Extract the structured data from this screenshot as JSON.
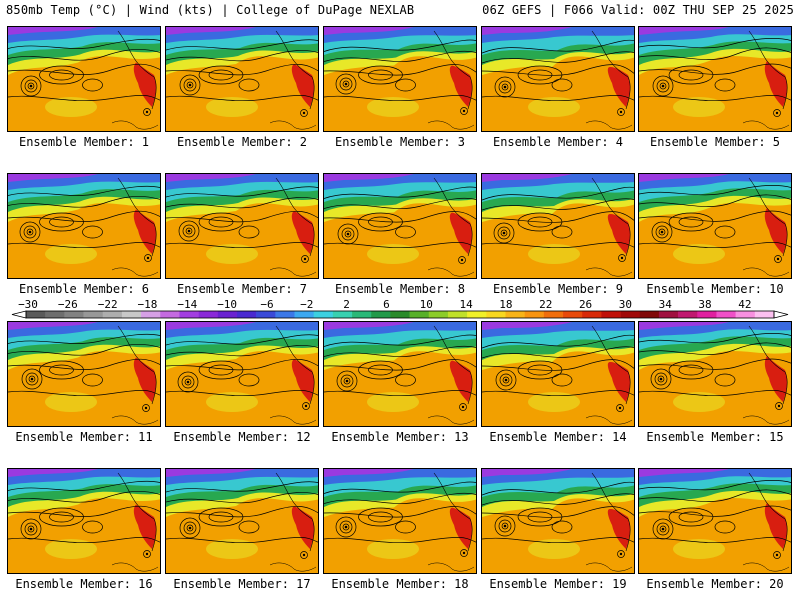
{
  "header": {
    "left_title": "850mb Temp (°C) | Wind (kts) | College of DuPage NEXLAB",
    "right_title": "06Z GEFS | F066 Valid: 00Z THU SEP 25 2025"
  },
  "panel_label_prefix": "Ensemble Member: ",
  "members": [
    1,
    2,
    3,
    4,
    5,
    6,
    7,
    8,
    9,
    10,
    11,
    12,
    13,
    14,
    15,
    16,
    17,
    18,
    19,
    20
  ],
  "colorbar": {
    "ticks": [
      "-30",
      "-26",
      "-22",
      "-18",
      "-14",
      "-10",
      "-6",
      "-2",
      "2",
      "6",
      "10",
      "14",
      "18",
      "22",
      "26",
      "30",
      "34",
      "38",
      "42"
    ],
    "colors": [
      "#5a5a5a",
      "#6e6e6e",
      "#828282",
      "#989898",
      "#aeaeae",
      "#c8c8c8",
      "#d6a0e6",
      "#c46ae0",
      "#a23ee0",
      "#8a2ad8",
      "#6a22d0",
      "#4a2ad0",
      "#3a4ad8",
      "#3c78e8",
      "#3ca8f0",
      "#3cd0e0",
      "#38d0b0",
      "#2ab878",
      "#229a4a",
      "#2a8a2a",
      "#58b02a",
      "#8ccc2a",
      "#c0e02a",
      "#f0f028",
      "#f8d820",
      "#f8b418",
      "#f89410",
      "#f06e0c",
      "#e84a0a",
      "#d82a08",
      "#c01008",
      "#a00808",
      "#800808",
      "#a01040",
      "#c01870",
      "#e020a0",
      "#f050c8",
      "#f890e0",
      "#fcc0f0"
    ]
  },
  "map_colors": {
    "cold": "#9a3ae0",
    "cool": "#3a6ae0",
    "cyan": "#38c8d0",
    "green": "#28a850",
    "yellow": "#e8e828",
    "warm": "#f2a000",
    "hot": "#d81e10",
    "contour": "#000000"
  }
}
